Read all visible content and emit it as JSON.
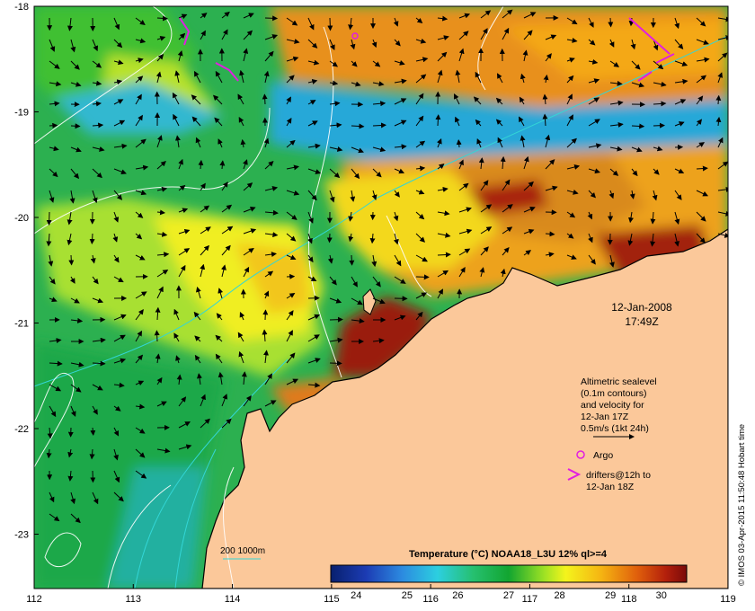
{
  "map": {
    "date": "12-Jan-2008",
    "time": "17:49Z",
    "x_ticks": [
      "112",
      "113",
      "114",
      "115",
      "116",
      "117",
      "118",
      "119"
    ],
    "y_ticks": [
      "-18",
      "-19",
      "-20",
      "-21",
      "-22",
      "-23"
    ],
    "credit": "© IMOS 03-Apr-2015 11:50:48 Hobart time"
  },
  "legend": {
    "altimetric_lines": [
      "Altimetric sealevel",
      "(0.1m contours)",
      "and velocity for",
      "12-Jan 17Z",
      "0.5m/s (1kt 24h)"
    ],
    "argo_label": "Argo",
    "drifters_lines": [
      "drifters@12h to",
      "12-Jan 18Z"
    ],
    "bathymetry_label": "200  1000m"
  },
  "colorbar": {
    "title": "Temperature (°C) NOAA18_L3U 12% ql>=4",
    "ticks": [
      "24",
      "25",
      "26",
      "27",
      "28",
      "29",
      "30"
    ]
  },
  "colors": {
    "land": "#fbc89a",
    "contour": "#ffffff",
    "bathymetry": "#33d6d6",
    "argo": "#e11ee1",
    "drifter": "#e11ee1"
  }
}
